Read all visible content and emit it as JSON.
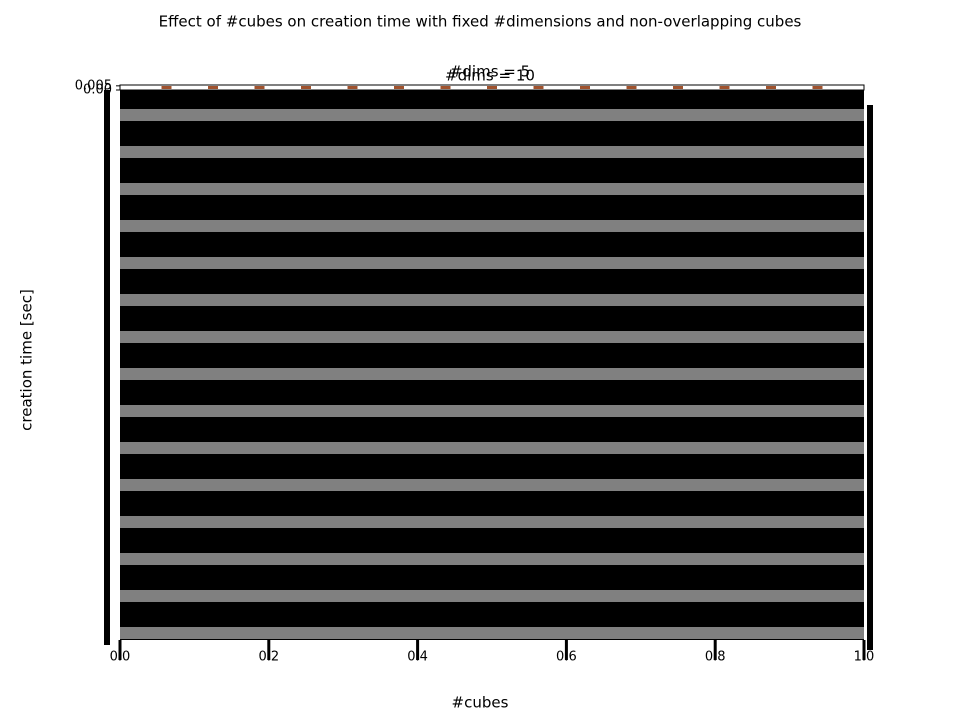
{
  "chart_data": {
    "type": "scatter",
    "title": "Effect of #cubes on creation time with fixed #dimensions and non-overlapping cubes",
    "subtitles": [
      "#dims = 5",
      "#dims = 10"
    ],
    "xlabel": "#cubes",
    "ylabel": "creation time [sec]",
    "x": [
      1,
      2,
      3,
      4,
      5,
      6,
      7,
      8,
      9,
      10,
      11,
      12,
      13,
      14,
      15
    ],
    "series": [
      {
        "color": "#a0522d",
        "values": [
          0.003,
          0.003,
          0.003,
          0.003,
          0.003,
          0.003,
          0.003,
          0.003,
          0.003,
          0.003,
          0.003,
          0.003,
          0.003,
          0.003,
          0.003
        ]
      }
    ],
    "xlim": [
      0,
      16
    ],
    "ylim": [
      0,
      0.006
    ],
    "yticks": [
      {
        "value": 0,
        "label": "0.00"
      },
      0.005
    ],
    "axis_xlim": [
      0,
      1
    ],
    "axis_xticks": [
      {
        "value": 0,
        "label": "0.0"
      },
      0.2,
      0.4,
      0.6,
      0.8,
      {
        "value": 1,
        "label": "1.0"
      }
    ]
  }
}
